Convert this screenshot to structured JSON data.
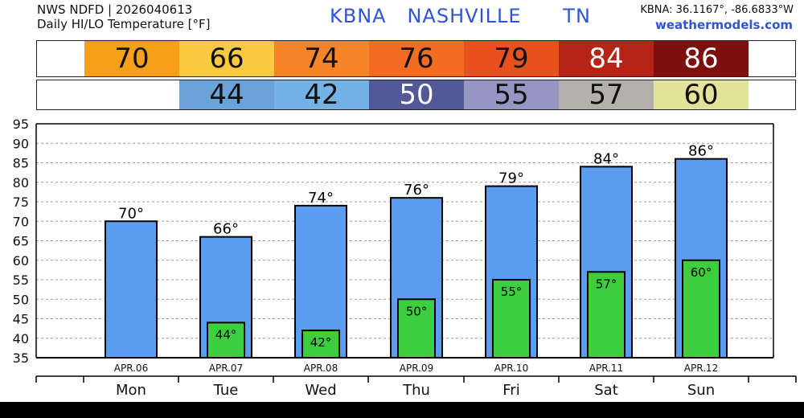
{
  "header": {
    "line1": "NWS NDFD | 2026040613",
    "line2": "Daily HI/LO Temperature [°F]",
    "station": "KBNA   NASHVILLE      TN",
    "coords": "KBNA: 36.1167°, -86.6833°W",
    "site": "weathermodels.com"
  },
  "hi_strip": [
    {
      "value": "70",
      "color": "#f6a019",
      "text_color": "#111111"
    },
    {
      "value": "66",
      "color": "#f9c93f",
      "text_color": "#111111"
    },
    {
      "value": "74",
      "color": "#f58428",
      "text_color": "#111111"
    },
    {
      "value": "76",
      "color": "#f26c22",
      "text_color": "#111111"
    },
    {
      "value": "79",
      "color": "#e8501e",
      "text_color": "#111111"
    },
    {
      "value": "84",
      "color": "#b52416",
      "text_color": "#ffffff"
    },
    {
      "value": "86",
      "color": "#7e0f0f",
      "text_color": "#ffffff"
    }
  ],
  "lo_strip": [
    {
      "value": "",
      "color": "#ffffff",
      "text_color": "#111111"
    },
    {
      "value": "44",
      "color": "#6aa2d9",
      "text_color": "#111111"
    },
    {
      "value": "42",
      "color": "#74b1e5",
      "text_color": "#111111"
    },
    {
      "value": "50",
      "color": "#535899",
      "text_color": "#ffffff"
    },
    {
      "value": "55",
      "color": "#9696c2",
      "text_color": "#111111"
    },
    {
      "value": "57",
      "color": "#b3b0a9",
      "text_color": "#111111"
    },
    {
      "value": "60",
      "color": "#e2e29a",
      "text_color": "#111111"
    }
  ],
  "chart_data": {
    "type": "bar",
    "categories": [
      "APR.06",
      "APR.07",
      "APR.08",
      "APR.09",
      "APR.10",
      "APR.11",
      "APR.12"
    ],
    "days": [
      "Mon",
      "Tue",
      "Wed",
      "Thu",
      "Fri",
      "Sat",
      "Sun"
    ],
    "series": [
      {
        "values": [
          70,
          66,
          74,
          76,
          79,
          84,
          86
        ],
        "labels": [
          "70°",
          "66°",
          "74°",
          "76°",
          "79°",
          "84°",
          "86°"
        ],
        "color": "#5a9df0"
      },
      {
        "values": [
          null,
          44,
          42,
          50,
          55,
          57,
          60
        ],
        "labels": [
          "",
          "44°",
          "42°",
          "50°",
          "55°",
          "57°",
          "60°"
        ],
        "color": "#3dce3d"
      }
    ],
    "yticks": [
      "35",
      "40",
      "45",
      "50",
      "55",
      "60",
      "65",
      "70",
      "75",
      "80",
      "85",
      "90",
      "95"
    ],
    "ylim": [
      35,
      95
    ],
    "grid": true
  }
}
